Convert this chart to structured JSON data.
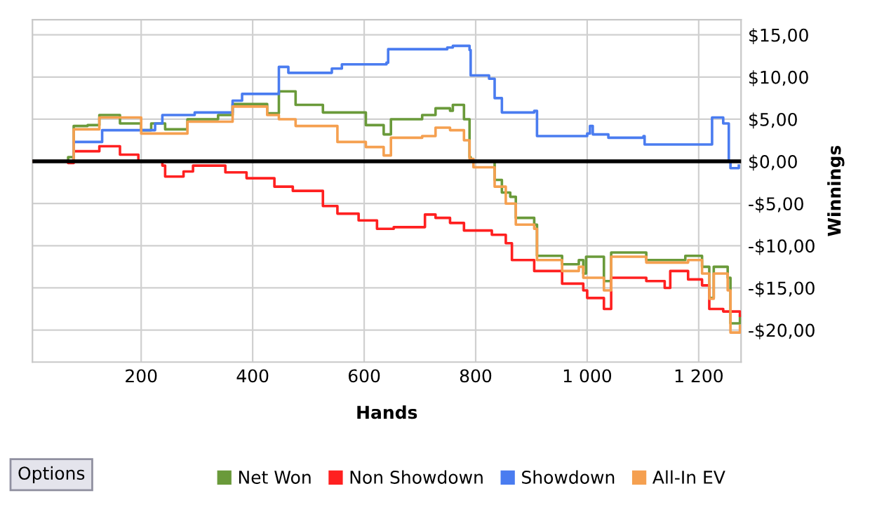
{
  "chart_data": {
    "type": "step",
    "xlabel": "Hands",
    "ylabel": "Winnings",
    "xlim": [
      5,
      1276
    ],
    "xticks": [
      {
        "value": 200,
        "label": "200"
      },
      {
        "value": 400,
        "label": "400"
      },
      {
        "value": 600,
        "label": "600"
      },
      {
        "value": 800,
        "label": "800"
      },
      {
        "value": 1000,
        "label": "1 000"
      },
      {
        "value": 1200,
        "label": "1 200"
      }
    ],
    "ylim": [
      -23.8,
      16.8
    ],
    "yticks": [
      {
        "value": -20,
        "label": "-$20,00"
      },
      {
        "value": -15,
        "label": "-$15,00"
      },
      {
        "value": -10,
        "label": "-$10,00"
      },
      {
        "value": -5,
        "label": "-$5,00"
      },
      {
        "value": 0,
        "label": "$0,00"
      },
      {
        "value": 5,
        "label": "$5,00"
      },
      {
        "value": 10,
        "label": "$10,00"
      },
      {
        "value": 15,
        "label": "$15,00"
      }
    ],
    "grid": true,
    "legend": "bottom",
    "ref_lines": [
      {
        "axis": "y",
        "value": 0,
        "color": "#000000"
      }
    ],
    "annotations": [
      "Options"
    ],
    "series": [
      {
        "name": "Net Won",
        "color": "#6a9a3a",
        "x": [
          6,
          69,
          79,
          104,
          125,
          162,
          200,
          218,
          243,
          283,
          338,
          364,
          426,
          447,
          477,
          526,
          603,
          635,
          648,
          704,
          728,
          754,
          759,
          779,
          789,
          791,
          817,
          834,
          847,
          862,
          872,
          905,
          910,
          955,
          985,
          993,
          998,
          1030,
          1043,
          1106,
          1156,
          1176,
          1206,
          1219,
          1227,
          1252,
          1257,
          1274
        ],
        "values": [
          0,
          0.5,
          4.2,
          4.3,
          5.5,
          4.5,
          3.7,
          4.5,
          3.8,
          5,
          5.5,
          6.8,
          5.7,
          8.3,
          6.7,
          5.8,
          4.3,
          3.2,
          5,
          5.5,
          6.3,
          6,
          6.7,
          5,
          0.5,
          0,
          0,
          -2.2,
          -3.7,
          -4.2,
          -6.7,
          -7.5,
          -11.2,
          -12.2,
          -11.7,
          -13.3,
          -11.3,
          -14.2,
          -10.8,
          -11.7,
          -11.7,
          -11.2,
          -12.5,
          -16.2,
          -12.5,
          -13.8,
          -19.2,
          -18.3
        ]
      },
      {
        "name": "Non Showdown",
        "color": "#ff2020",
        "x": [
          6,
          69,
          79,
          125,
          162,
          195,
          238,
          243,
          276,
          293,
          351,
          389,
          439,
          472,
          526,
          552,
          590,
          623,
          653,
          709,
          728,
          754,
          779,
          829,
          854,
          865,
          905,
          955,
          993,
          1000,
          1030,
          1043,
          1106,
          1139,
          1149,
          1181,
          1206,
          1219,
          1244,
          1274
        ],
        "values": [
          0,
          -0.2,
          1.2,
          1.8,
          0.8,
          0,
          -0.5,
          -1.8,
          -1.2,
          -0.5,
          -1.3,
          -2,
          -3,
          -3.5,
          -5.3,
          -6.2,
          -7,
          -8,
          -7.8,
          -6.3,
          -6.7,
          -7.3,
          -8.2,
          -8.7,
          -9.7,
          -11.7,
          -13,
          -14.5,
          -15.3,
          -16.2,
          -17.5,
          -13.8,
          -14.2,
          -15,
          -13,
          -14,
          -14.7,
          -17.5,
          -17.8,
          -18.3
        ]
      },
      {
        "name": "Showdown",
        "color": "#4a7cf0",
        "x": [
          6,
          74,
          79,
          120,
          130,
          200,
          225,
          238,
          296,
          364,
          381,
          431,
          447,
          464,
          542,
          560,
          640,
          643,
          749,
          759,
          789,
          791,
          824,
          834,
          847,
          905,
          910,
          1000,
          1005,
          1010,
          1038,
          1101,
          1103,
          1219,
          1224,
          1244,
          1254,
          1257,
          1272
        ],
        "values": [
          0,
          0,
          2.3,
          2.3,
          3.7,
          3.7,
          4.5,
          5.5,
          5.8,
          7.2,
          8,
          8,
          11.2,
          10.5,
          11,
          11.5,
          11.7,
          13.3,
          13.5,
          13.7,
          13.2,
          10.2,
          9.8,
          7.5,
          5.8,
          6,
          3,
          3.3,
          4.2,
          3.2,
          2.8,
          3,
          2,
          2,
          5.2,
          4.5,
          0,
          -0.8,
          -0.5
        ]
      },
      {
        "name": "All-In EV",
        "color": "#f5a050",
        "x": [
          6,
          79,
          125,
          200,
          283,
          364,
          426,
          447,
          477,
          552,
          603,
          635,
          648,
          704,
          728,
          754,
          779,
          789,
          796,
          834,
          854,
          872,
          905,
          910,
          955,
          985,
          993,
          1030,
          1043,
          1106,
          1181,
          1206,
          1219,
          1227,
          1252,
          1257,
          1274
        ],
        "values": [
          0,
          3.8,
          5.2,
          3.3,
          4.7,
          6.5,
          5.5,
          5,
          4.2,
          2.3,
          1.7,
          0.7,
          2.8,
          3,
          4,
          3.7,
          2.5,
          0.3,
          -0.7,
          -3,
          -5,
          -7.5,
          -8,
          -11.7,
          -13,
          -12.5,
          -13.8,
          -15.3,
          -11.3,
          -12,
          -11.7,
          -13.3,
          -16.3,
          -13.3,
          -15.3,
          -20.3,
          -19.5
        ]
      }
    ]
  }
}
